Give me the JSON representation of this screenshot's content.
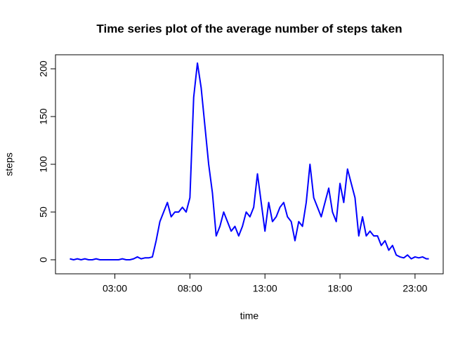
{
  "chart_data": {
    "type": "line",
    "title": "Time series plot of the average number of steps taken",
    "x_label": "time",
    "y_label": "steps",
    "x": [
      0,
      0.25,
      0.5,
      0.75,
      1,
      1.25,
      1.5,
      1.75,
      2,
      2.25,
      2.5,
      2.75,
      3,
      3.25,
      3.5,
      3.75,
      4,
      4.25,
      4.5,
      4.75,
      5,
      5.25,
      5.5,
      5.75,
      6,
      6.25,
      6.5,
      6.75,
      7,
      7.25,
      7.5,
      7.75,
      8,
      8.25,
      8.5,
      8.75,
      9,
      9.25,
      9.5,
      9.75,
      10,
      10.25,
      10.5,
      10.75,
      11,
      11.25,
      11.5,
      11.75,
      12,
      12.25,
      12.5,
      12.75,
      13,
      13.25,
      13.5,
      13.75,
      14,
      14.25,
      14.5,
      14.75,
      15,
      15.25,
      15.5,
      15.75,
      16,
      16.25,
      16.5,
      16.75,
      17,
      17.25,
      17.5,
      17.75,
      18,
      18.25,
      18.5,
      18.75,
      19,
      19.25,
      19.5,
      19.75,
      20,
      20.25,
      20.5,
      20.75,
      21,
      21.25,
      21.5,
      21.75,
      22,
      22.25,
      22.5,
      22.75,
      23,
      23.25,
      23.5,
      23.75,
      23.92
    ],
    "series": [
      {
        "color": "#0000ff",
        "values": [
          1,
          0,
          1,
          0,
          1,
          0,
          0,
          1,
          0,
          0,
          0,
          0,
          0,
          0,
          1,
          0,
          0,
          1,
          3,
          1,
          2,
          2,
          3,
          20,
          40,
          50,
          60,
          45,
          50,
          50,
          55,
          50,
          65,
          170,
          206,
          180,
          140,
          100,
          70,
          25,
          35,
          50,
          40,
          30,
          35,
          25,
          35,
          50,
          45,
          55,
          90,
          60,
          30,
          60,
          40,
          45,
          55,
          60,
          45,
          40,
          20,
          40,
          35,
          60,
          100,
          65,
          55,
          45,
          60,
          75,
          50,
          40,
          80,
          60,
          95,
          80,
          65,
          25,
          45,
          25,
          30,
          25,
          25,
          15,
          20,
          10,
          15,
          5,
          3,
          2,
          5,
          1,
          3,
          2,
          3,
          1,
          1
        ]
      }
    ],
    "xlim": [
      -0.957,
      24.877
    ],
    "ylim": [
      -14.7,
      214.7
    ],
    "xticks": [
      {
        "value": 3,
        "label": "03:00"
      },
      {
        "value": 8,
        "label": "08:00"
      },
      {
        "value": 13,
        "label": "13:00"
      },
      {
        "value": 18,
        "label": "18:00"
      },
      {
        "value": 23,
        "label": "23:00"
      }
    ],
    "yticks": [
      0,
      50,
      100,
      150,
      200
    ]
  }
}
